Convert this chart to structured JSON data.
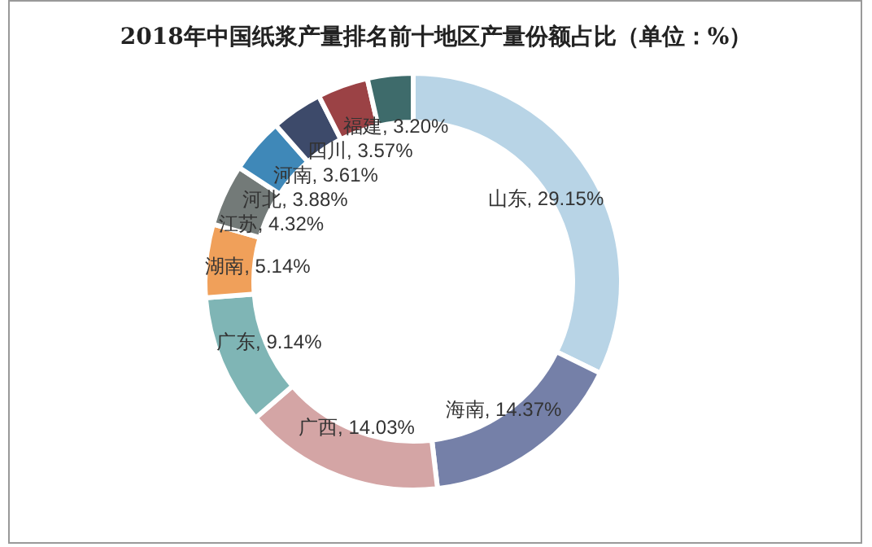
{
  "chart_data": {
    "type": "donut",
    "title": "2018年中国纸浆产量排名前十地区产量份额占比（单位：%）",
    "categories": [
      "山东",
      "海南",
      "广西",
      "广东",
      "湖南",
      "江苏",
      "河北",
      "河南",
      "四川",
      "福建"
    ],
    "values": [
      29.15,
      14.37,
      14.03,
      9.14,
      5.14,
      4.32,
      3.88,
      3.61,
      3.57,
      3.2
    ],
    "colors": [
      "#b8d4e6",
      "#7580a8",
      "#d4a5a5",
      "#7fb5b5",
      "#f0a05a",
      "#737a78",
      "#3f88b8",
      "#3d4a6a",
      "#9b4245",
      "#3e6b6b"
    ],
    "value_labels": [
      ", 29.15%",
      ", 14.37%",
      ", 14.03%",
      ", 9.14%",
      ", 5.14%",
      ", 4.32%",
      ", 3.88%",
      ", 3.61%",
      ", 3.57%",
      ", 3.20%"
    ],
    "legend": false
  }
}
